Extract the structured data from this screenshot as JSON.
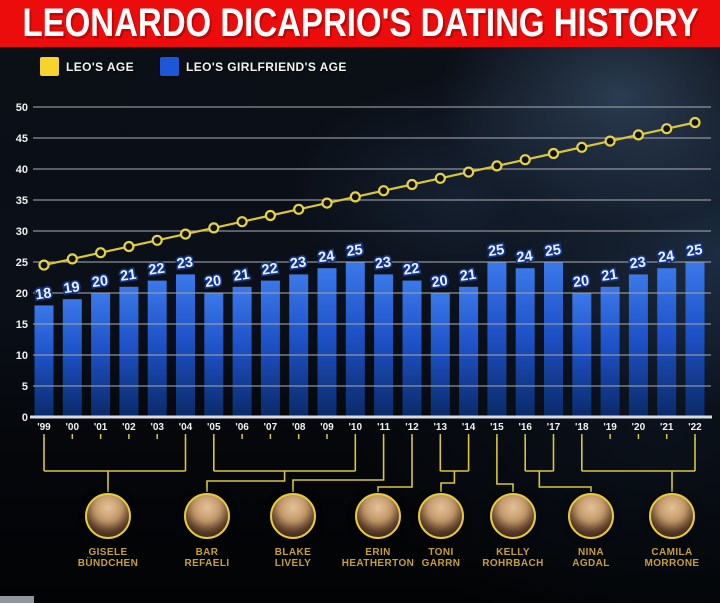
{
  "banner": {
    "title": "LEONARDO DICAPRIO'S DATING HISTORY",
    "background_color": "#ed0c0c"
  },
  "legend": {
    "items": [
      {
        "label": "LEO'S AGE",
        "color": "#f6d42d"
      },
      {
        "label": "LEO'S GIRLFRIEND'S AGE",
        "color": "#1c57d8"
      }
    ]
  },
  "chart_data": {
    "type": "bar",
    "title": "LEONARDO DICAPRIO'S DATING HISTORY",
    "categories": [
      "'99",
      "'00",
      "'01",
      "'02",
      "'03",
      "'04",
      "'05",
      "'06",
      "'07",
      "'08",
      "'09",
      "'10",
      "'11",
      "'12",
      "'13",
      "'14",
      "'15",
      "'16",
      "'17",
      "'18",
      "'19",
      "'20",
      "'21",
      "'22"
    ],
    "series": [
      {
        "name": "LEO'S AGE",
        "type": "line",
        "color": "#d9c63b",
        "values": [
          24.5,
          25.5,
          26.5,
          27.5,
          28.5,
          29.5,
          30.5,
          31.5,
          32.5,
          33.5,
          34.5,
          35.5,
          36.5,
          37.5,
          38.5,
          39.5,
          40.5,
          41.5,
          42.5,
          43.5,
          44.5,
          45.5,
          46.5,
          47.5
        ]
      },
      {
        "name": "LEO'S GIRLFRIEND'S AGE",
        "type": "bar",
        "color": "#1c57d8",
        "values": [
          18,
          19,
          20,
          21,
          22,
          23,
          20,
          21,
          22,
          23,
          24,
          25,
          23,
          22,
          20,
          21,
          25,
          24,
          25,
          20,
          21,
          23,
          24,
          25
        ]
      }
    ],
    "xlabel": "",
    "ylabel": "",
    "ylim": [
      0,
      50
    ],
    "ytick_step": 5,
    "grid": true,
    "legend_position": "top-left"
  },
  "girlfriends": [
    {
      "name_line1": "GISELE",
      "name_line2": "BÜNDCHEN",
      "from": "'99",
      "to": "'04"
    },
    {
      "name_line1": "BAR",
      "name_line2": "REFAELI",
      "from": "'05",
      "to": "'10"
    },
    {
      "name_line1": "BLAKE",
      "name_line2": "LIVELY",
      "from": "'11",
      "to": "'11"
    },
    {
      "name_line1": "ERIN",
      "name_line2": "HEATHERTON",
      "from": "'12",
      "to": "'12"
    },
    {
      "name_line1": "TONI",
      "name_line2": "GARRN",
      "from": "'13",
      "to": "'14"
    },
    {
      "name_line1": "KELLY",
      "name_line2": "ROHRBACH",
      "from": "'15",
      "to": "'15"
    },
    {
      "name_line1": "NINA",
      "name_line2": "AGDAL",
      "from": "'16",
      "to": "'17"
    },
    {
      "name_line1": "CAMILA",
      "name_line2": "MORRONE",
      "from": "'18",
      "to": "'22"
    }
  ]
}
